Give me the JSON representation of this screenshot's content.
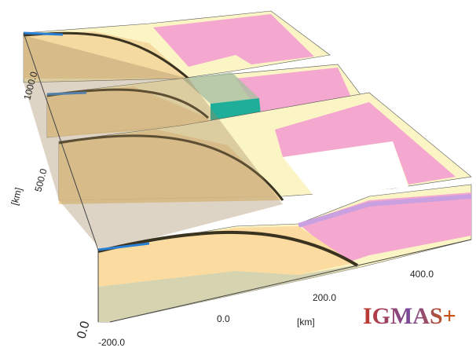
{
  "axes": {
    "y_ticks": [
      "1000.0",
      "500.0"
    ],
    "y_label": "[km]",
    "origin": "0.0",
    "x_ticks": [
      "-200.0",
      "0.0",
      "200.0",
      "400.0"
    ],
    "x_label": "[km]"
  },
  "logo": "IGMAS+"
}
